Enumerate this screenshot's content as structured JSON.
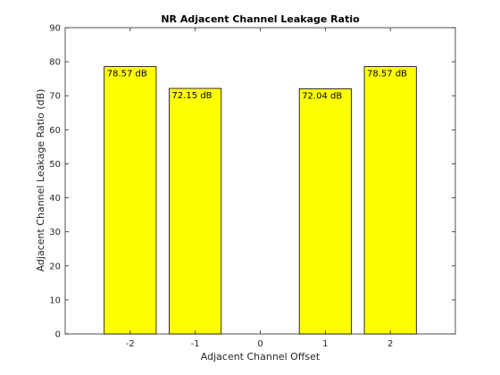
{
  "chart_data": {
    "type": "bar",
    "title": "NR Adjacent Channel Leakage Ratio",
    "xlabel": "Adjacent Channel Offset",
    "ylabel": "Adjacent Channel Leakage Ratio (dB)",
    "categories": [
      -2,
      -1,
      1,
      2
    ],
    "values": [
      78.57,
      72.15,
      72.04,
      78.57
    ],
    "data_labels": [
      "78.57 dB",
      "72.15 dB",
      "72.04 dB",
      "78.57 dB"
    ],
    "xticks": [
      "-2",
      "-1",
      "0",
      "1",
      "2"
    ],
    "xlim": [
      -3,
      3
    ],
    "ylim": [
      0,
      90
    ],
    "yticks": [
      "0",
      "10",
      "20",
      "30",
      "40",
      "50",
      "60",
      "70",
      "80",
      "90"
    ],
    "grid": false,
    "legend": "none",
    "colors": {
      "bar_fill": "#ffff00",
      "bar_stroke": "#000000",
      "axes": "#262626",
      "background": "#ffffff"
    }
  }
}
